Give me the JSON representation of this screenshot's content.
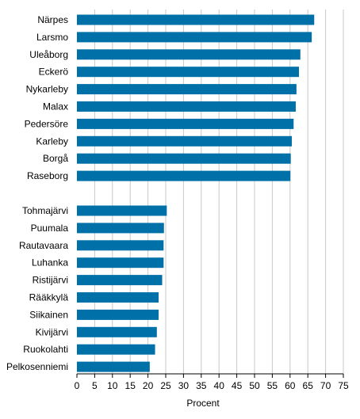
{
  "chart_data": {
    "type": "bar",
    "orientation": "horizontal",
    "xlabel": "Procent",
    "xlim": [
      0,
      75
    ],
    "xticks": [
      0,
      5,
      10,
      15,
      20,
      25,
      30,
      35,
      40,
      45,
      50,
      55,
      60,
      65,
      70,
      75
    ],
    "grid": true,
    "bar_color": "#0071a8",
    "groups": [
      {
        "categories": [
          "Närpes",
          "Larsmo",
          "Uleåborg",
          "Eckerö",
          "Nykarleby",
          "Malax",
          "Pedersöre",
          "Karleby",
          "Borgå",
          "Raseborg"
        ],
        "values": [
          66.8,
          66.1,
          62.9,
          62.5,
          61.8,
          61.6,
          61.0,
          60.5,
          60.2,
          60.1
        ]
      },
      {
        "categories": [
          "Tohmajärvi",
          "Puumala",
          "Rautavaara",
          "Luhanka",
          "Ristijärvi",
          "Rääkkylä",
          "Siikainen",
          "Kivijärvi",
          "Ruokolahti",
          "Pelkosenniemi"
        ],
        "values": [
          25.3,
          24.5,
          24.4,
          24.4,
          24.0,
          23.0,
          23.0,
          22.5,
          22.0,
          20.5
        ]
      }
    ]
  }
}
